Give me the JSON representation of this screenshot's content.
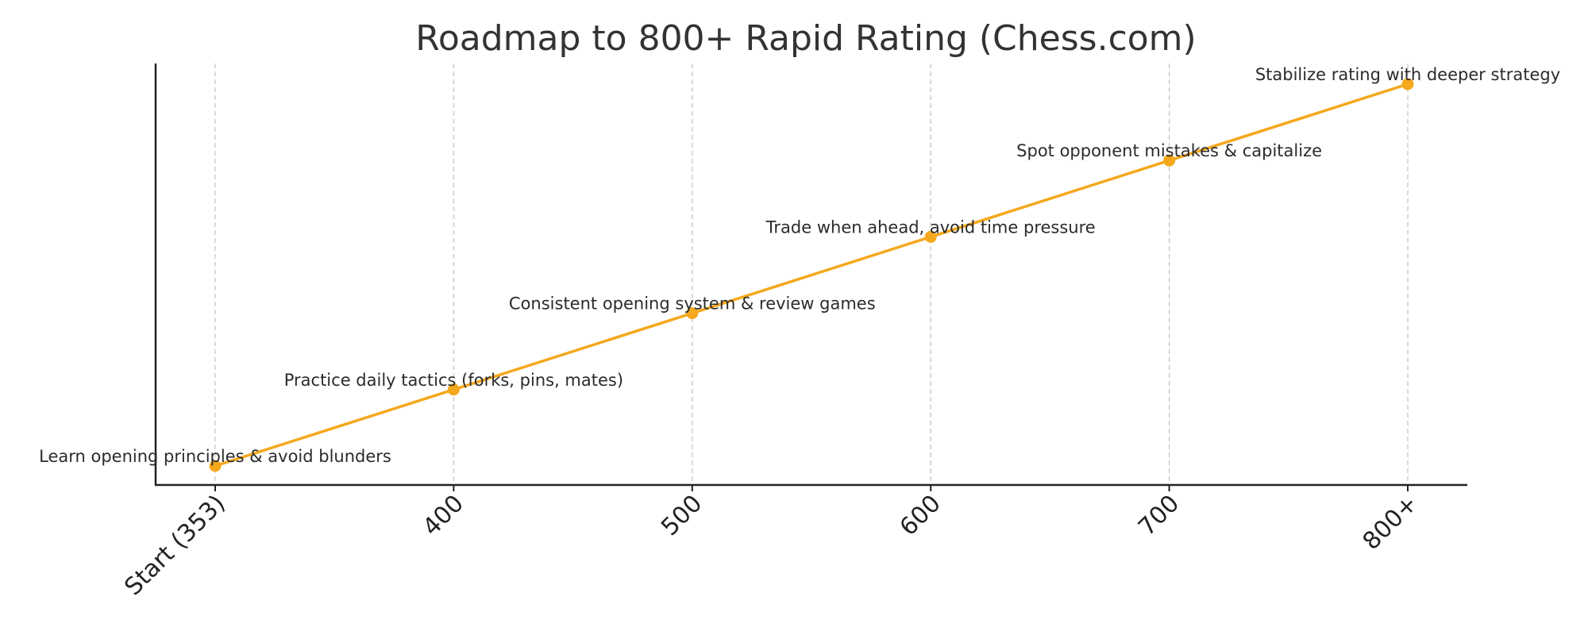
{
  "chart_data": {
    "type": "line",
    "title": "Roadmap to 800+ Rapid Rating (Chess.com)",
    "xlabel": "",
    "ylabel": "",
    "categories": [
      "Start (353)",
      "400",
      "500",
      "600",
      "700",
      "800+"
    ],
    "series": [
      {
        "values": [
          1,
          2,
          3,
          4,
          5,
          6
        ]
      }
    ],
    "annotations": [
      "Learn opening principles & avoid blunders",
      "Practice daily tactics (forks, pins, mates)",
      "Consistent opening system & review games",
      "Trade when ahead, avoid time pressure",
      "Spot opponent mistakes & capitalize",
      "Stabilize rating with deeper strategy"
    ],
    "grid": "vertical dashed",
    "line_color": "#f5a81c",
    "grid_color": "#c8c8c8",
    "axis_color": "#222222"
  }
}
